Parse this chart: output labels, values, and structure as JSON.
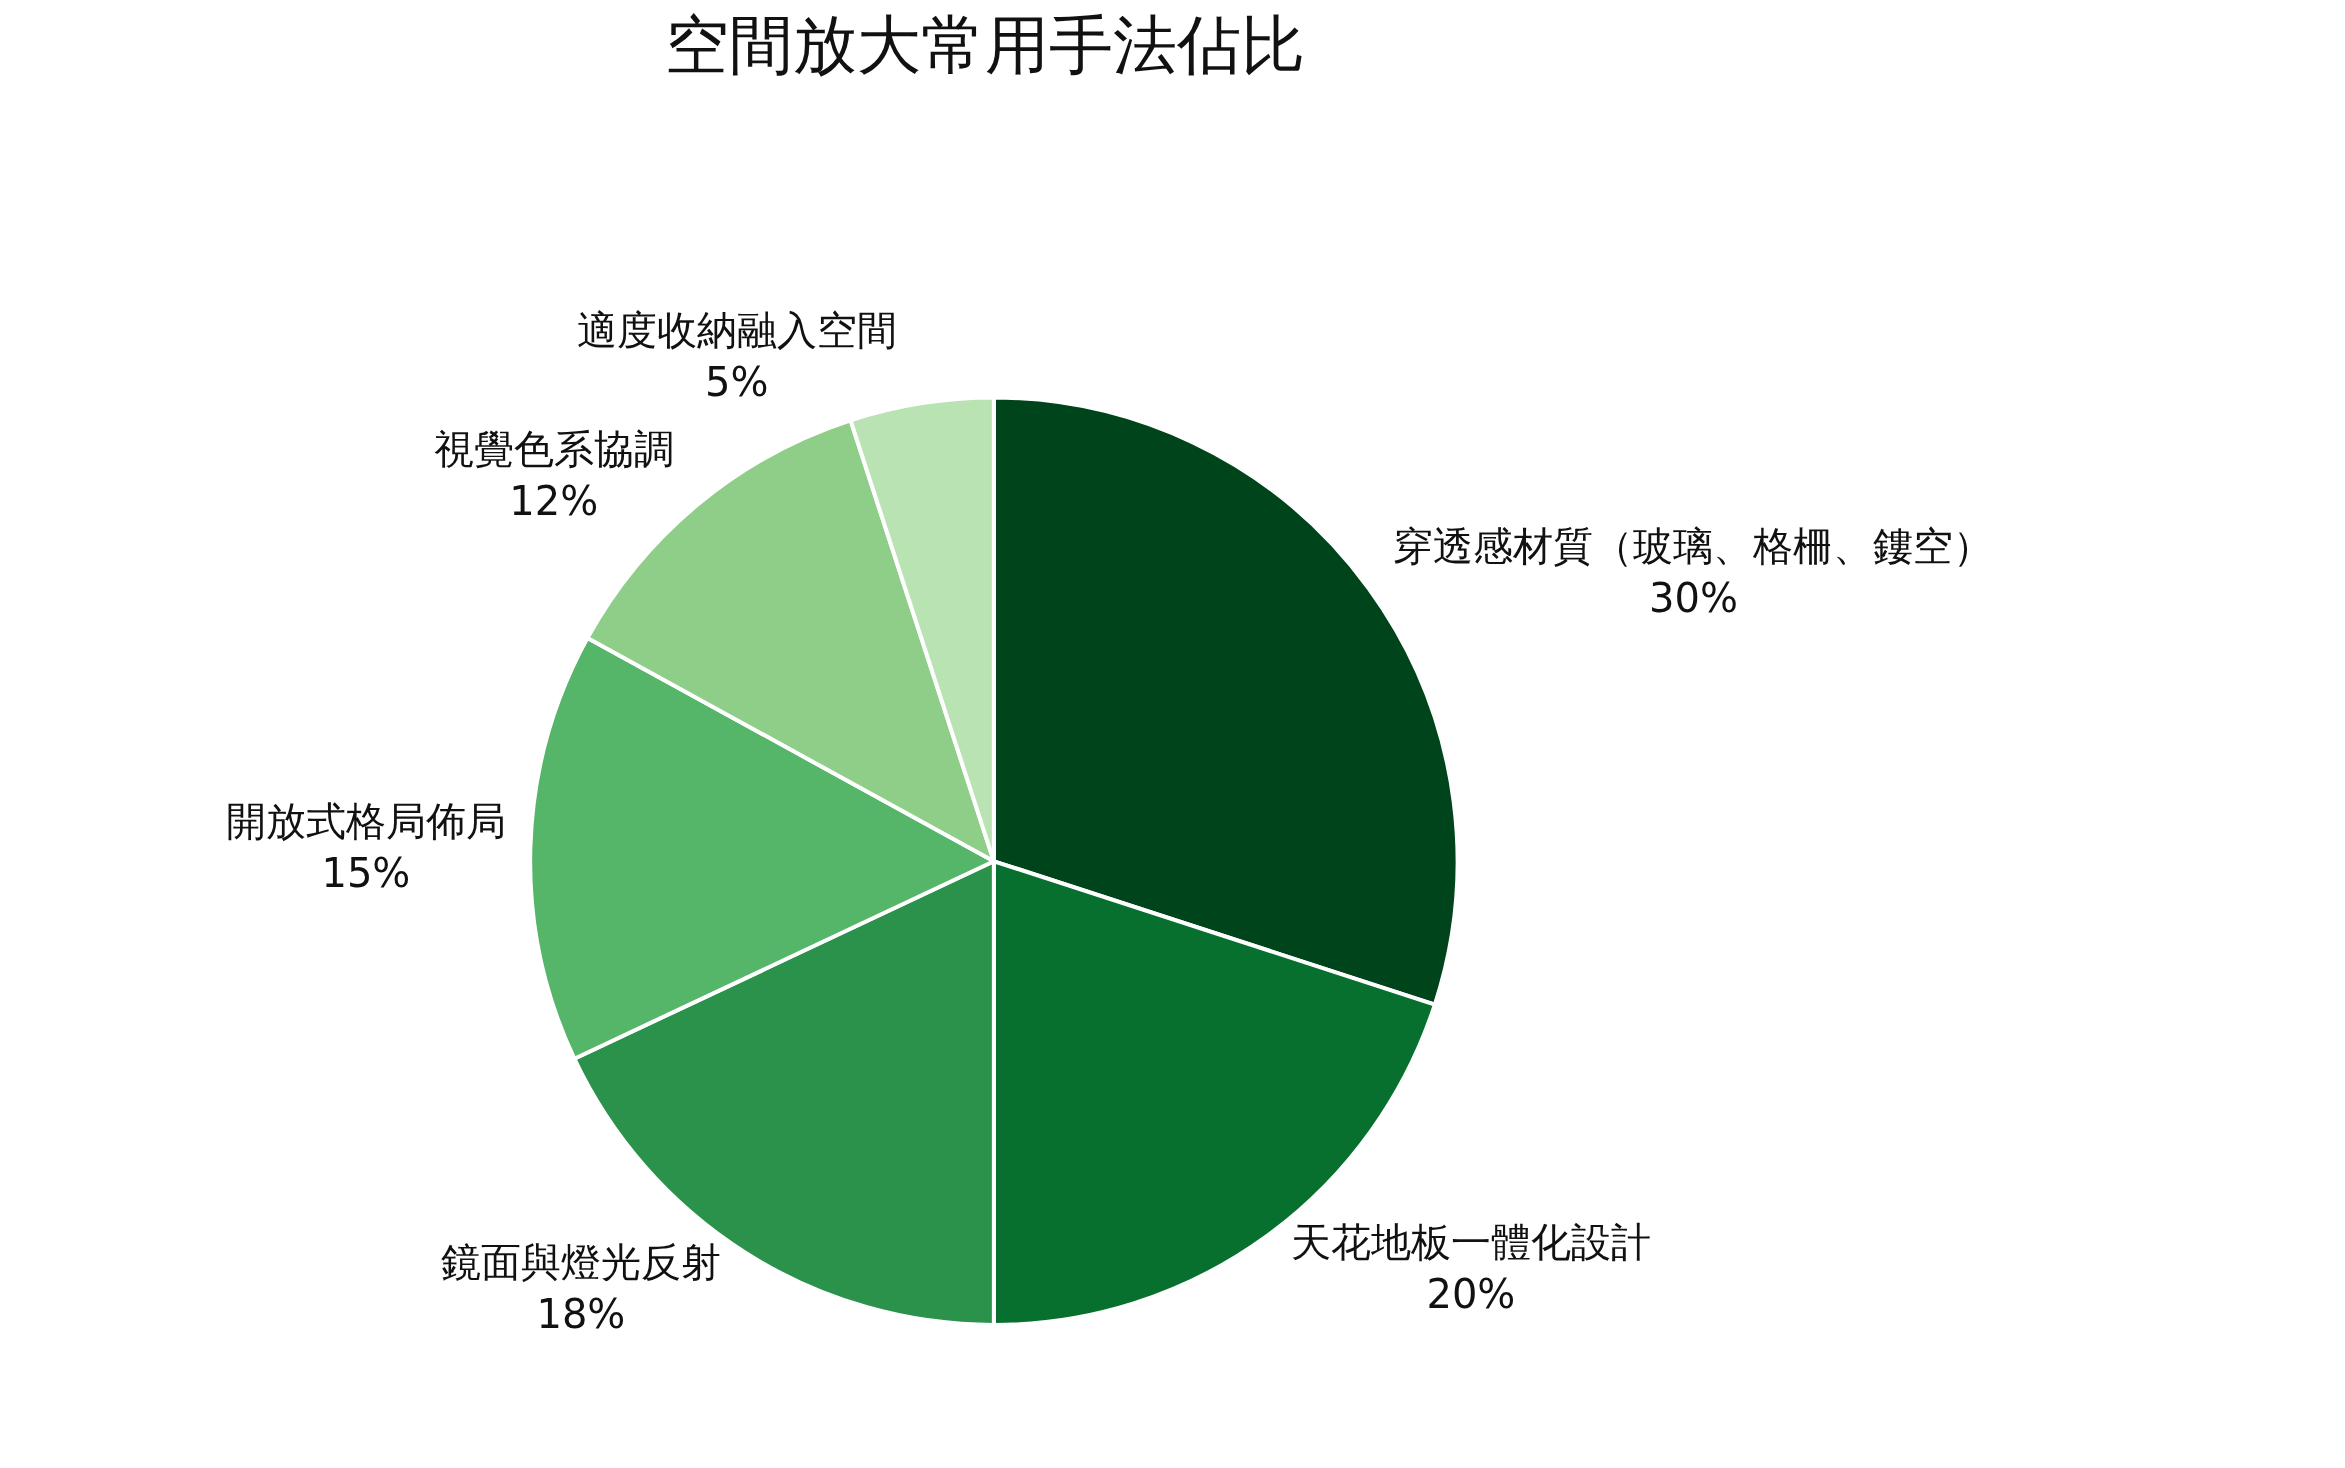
{
  "chart_data": {
    "type": "pie",
    "title": "空間放大常用手法佔比",
    "categories": [
      "穿透感材質（玻璃、格柵、鏤空）",
      "天花地板一體化設計",
      "鏡面與燈光反射",
      "開放式格局佈局",
      "視覺色系協調",
      "適度收納融入空間"
    ],
    "values": [
      30,
      20,
      18,
      15,
      12,
      5
    ],
    "value_labels": [
      "30%",
      "20%",
      "18%",
      "15%",
      "12%",
      "5%"
    ],
    "colors": [
      "#00441b",
      "#08702f",
      "#2b924b",
      "#55b568",
      "#8ece88",
      "#b9e3b2"
    ],
    "legend": false
  }
}
